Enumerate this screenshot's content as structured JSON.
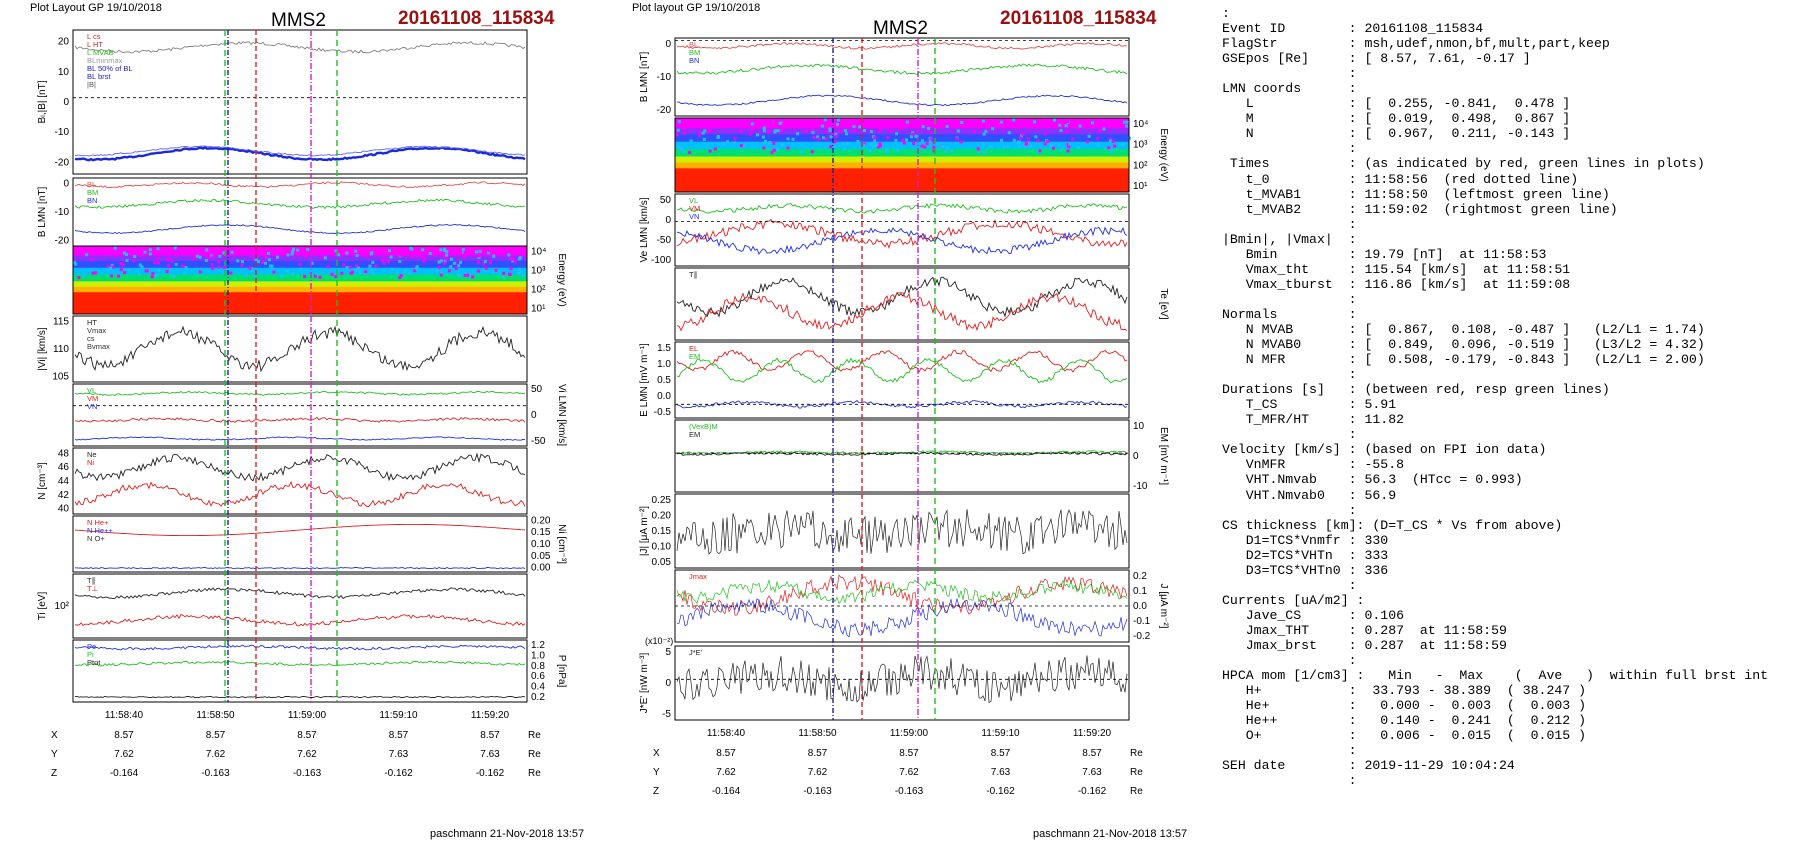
{
  "left_plot": {
    "header": "Plot Layout GP 19/10/2018",
    "title": "MMS2",
    "event": "20161108_115834",
    "footer": "paschmann 21-Nov-2018 13:57",
    "panels": [
      {
        "name": "B",
        "ylabel": "Bₗ,|B| [nT]",
        "ticks": [
          "20",
          "10",
          "0",
          "-10",
          "-20"
        ],
        "legend": [
          "L cs",
          "L HT",
          "L MVAB",
          "BLminmax",
          "BL 50% of BL",
          "BL brst",
          "|B|"
        ],
        "legend_colors": [
          "#e02020",
          "#e02020",
          "#20c020",
          "#999999",
          "#2020c0",
          "#2020c0",
          "#555555"
        ]
      },
      {
        "name": "BLMN",
        "ylabel": "B LMN [nT]",
        "ticks": [
          "0",
          "-10",
          "-20"
        ],
        "legend": [
          "BL",
          "BM",
          "BN"
        ]
      },
      {
        "name": "spec",
        "ylabel": "Energy (eV)",
        "ticks": [
          "10⁴",
          "10³",
          "10²",
          "10¹"
        ]
      },
      {
        "name": "Vi",
        "ylabel": "|Vi| [km/s]",
        "ticks": [
          "115",
          "110",
          "105"
        ],
        "legend": [
          "HT",
          "Vmax",
          "cs",
          "Bvmax"
        ]
      },
      {
        "name": "ViLMN",
        "ylabel": "Vi LMN [km/s]",
        "ticks": [
          "50",
          "0",
          "-50"
        ],
        "legend": [
          "VL",
          "VM",
          "VN"
        ]
      },
      {
        "name": "N",
        "ylabel": "N [cm⁻³]",
        "ticks": [
          "48",
          "46",
          "44",
          "42",
          "40"
        ],
        "legend": [
          "Ne",
          "Ni"
        ]
      },
      {
        "name": "Ni",
        "ylabel": "Ni [cm⁻³]",
        "ticks": [
          "0.20",
          "0.15",
          "0.10",
          "0.05",
          "0.00"
        ],
        "legend": [
          "N He+",
          "N He++",
          "N O+"
        ]
      },
      {
        "name": "Ti",
        "ylabel": "Ti [eV]",
        "ticks": [
          "10²"
        ],
        "legend": [
          "T∥",
          "T⊥"
        ]
      },
      {
        "name": "P",
        "ylabel": "P [nPa]",
        "ticks": [
          "1.2",
          "1.0",
          "0.8",
          "0.6",
          "0.4",
          "0.2"
        ],
        "legend": [
          "Pe",
          "Pi",
          "Ptot"
        ]
      }
    ],
    "time_ticks": [
      "11:58:40",
      "11:58:50",
      "11:59:00",
      "11:59:10",
      "11:59:20"
    ],
    "position_rows": [
      {
        "label": "X",
        "values": [
          "8.57",
          "8.57",
          "8.57",
          "8.57",
          "8.57"
        ],
        "unit": "Re"
      },
      {
        "label": "Y",
        "values": [
          "7.62",
          "7.62",
          "7.62",
          "7.63",
          "7.63"
        ],
        "unit": "Re"
      },
      {
        "label": "Z",
        "values": [
          "-0.164",
          "-0.163",
          "-0.163",
          "-0.162",
          "-0.162"
        ],
        "unit": "Re"
      }
    ]
  },
  "right_plot": {
    "header": "Plot layout GP 19/10/2018",
    "title": "MMS2",
    "event": "20161108_115834",
    "footer": "paschmann 21-Nov-2018 13:57",
    "panels": [
      {
        "name": "BLMN",
        "ylabel": "B LMN [nT]",
        "ticks": [
          "0",
          "-10",
          "-20"
        ],
        "legend": [
          "BL",
          "BM",
          "BN"
        ]
      },
      {
        "name": "spec",
        "ylabel": "Energy (eV)",
        "ticks": [
          "10⁴",
          "10³",
          "10²",
          "10¹"
        ]
      },
      {
        "name": "Ve",
        "ylabel": "Ve LMN [km/s]",
        "ticks": [
          "50",
          "0",
          "-50",
          "-100"
        ],
        "legend": [
          "VL",
          "VM",
          "VN"
        ]
      },
      {
        "name": "Te",
        "ylabel": "Te [eV]",
        "ticks": [],
        "legend": [
          "T∥"
        ]
      },
      {
        "name": "E",
        "ylabel": "E LMN [mV m⁻¹]",
        "ticks": [
          "1.5",
          "1.0",
          "0.5",
          "0.0",
          "-0.5"
        ],
        "legend": [
          "EL",
          "EM"
        ]
      },
      {
        "name": "VexB",
        "ylabel": "EM [mV m⁻¹]",
        "ticks": [
          "10",
          "0",
          "-10"
        ],
        "legend": [
          "(VexB)M",
          "EM"
        ]
      },
      {
        "name": "J",
        "ylabel": "|J| [μA m⁻²]",
        "ticks": [
          "0.25",
          "0.20",
          "0.15",
          "0.10",
          "0.05"
        ]
      },
      {
        "name": "JLMN",
        "ylabel": "J [μA m⁻²]",
        "ticks": [
          "0.2",
          "0.1",
          "0.0",
          "-0.1",
          "-0.2"
        ],
        "legend": [
          "Jmax"
        ]
      },
      {
        "name": "JE",
        "ylabel": "J*E' [nW m⁻³]",
        "ticks": [
          "5",
          "0",
          "-5"
        ],
        "legend": [
          "J*E'"
        ],
        "scale": "(x10⁻²)"
      }
    ],
    "time_ticks": [
      "11:58:40",
      "11:58:50",
      "11:59:00",
      "11:59:10",
      "11:59:20"
    ],
    "position_rows": [
      {
        "label": "X",
        "values": [
          "8.57",
          "8.57",
          "8.57",
          "8.57",
          "8.57"
        ],
        "unit": "Re"
      },
      {
        "label": "Y",
        "values": [
          "7.62",
          "7.62",
          "7.62",
          "7.63",
          "7.63"
        ],
        "unit": "Re"
      },
      {
        "label": "Z",
        "values": [
          "-0.164",
          "-0.163",
          "-0.163",
          "-0.162",
          "-0.162"
        ],
        "unit": "Re"
      }
    ]
  },
  "chart_data": [
    {
      "type": "line",
      "title": "MMS2 20161108_115834",
      "x_range": [
        "11:58:34",
        "11:59:25"
      ],
      "series_summary": "magnetic field, ion spectrogram, ion velocity, density, temperature, pressure time series",
      "markers": {
        "t_0": "11:58:56",
        "t_MVAB1": "11:58:50",
        "t_MVAB2": "11:59:02"
      }
    },
    {
      "type": "line",
      "title": "MMS2 20161108_115834",
      "x_range": [
        "11:58:34",
        "11:59:25"
      ],
      "series_summary": "B LMN, electron spectrogram, Ve LMN, Te, E LMN, EM, |J|, J LMN, J*E' time series",
      "markers": {
        "t_0": "11:58:56",
        "t_MVAB1": "11:58:50",
        "t_MVAB2": "11:59:02"
      }
    }
  ],
  "colors": {
    "event": "#9a1010",
    "red": "#e02020",
    "green": "#20c020",
    "blue": "#2030e0",
    "magenta": "#d020d0"
  },
  "summary_text": [
    ":",
    "Event ID        : 20161108_115834",
    "FlagStr         : msh,udef,nmon,bf,mult,part,keep",
    "GSEpos [Re]     : [ 8.57, 7.61, -0.17 ]",
    "                :",
    "LMN coords      :",
    "   L            : [  0.255, -0.841,  0.478 ]",
    "   M            : [  0.019,  0.498,  0.867 ]",
    "   N            : [  0.967,  0.211, -0.143 ]",
    "                :",
    " Times          : (as indicated by red, green lines in plots)",
    "   t_0          : 11:58:56  (red dotted line)",
    "   t_MVAB1      : 11:58:50  (leftmost green line)",
    "   t_MVAB2      : 11:59:02  (rightmost green line)",
    "                :",
    "|Bmin|, |Vmax|  :",
    "   Bmin         : 19.79 [nT]  at 11:58:53",
    "   Vmax_tht     : 115.54 [km/s]  at 11:58:51",
    "   Vmax_tburst  : 116.86 [km/s]  at 11:59:08",
    "                :",
    "Normals         :",
    "   N MVAB       : [  0.867,  0.108, -0.487 ]   (L2/L1 = 1.74)",
    "   N MVAB0      : [  0.849,  0.096, -0.519 ]   (L3/L2 = 4.32)",
    "   N MFR        : [  0.508, -0.179, -0.843 ]   (L2/L1 = 2.00)",
    "                :",
    "Durations [s]   : (between red, resp green lines)",
    "   T_CS         : 5.91",
    "   T_MFR/HT     : 11.82",
    "                :",
    "Velocity [km/s] : (based on FPI ion data)",
    "   VnMFR        : -55.8",
    "   VHT.Nmvab    : 56.3  (HTcc = 0.993)",
    "   VHT.Nmvab0   : 56.9",
    "                :",
    "CS thickness [km]: (D=T_CS * Vs from above)",
    "   D1=TCS*Vnmfr : 330",
    "   D2=TCS*VHTn  : 333",
    "   D3=TCS*VHTn0 : 336",
    "                :",
    "Currents [uA/m2] :",
    "   Jave_CS      : 0.106",
    "   Jmax_THT     : 0.287  at 11:58:59",
    "   Jmax_brst    : 0.287  at 11:58:59",
    "                :",
    "HPCA mom [1/cm3] :   Min   -  Max    (  Ave   )  within full brst int",
    "   H+           :  33.793 - 38.389  ( 38.247 )",
    "   He+          :   0.000 -  0.003  (  0.003 )",
    "   He++         :   0.140 -  0.241  (  0.212 )",
    "   O+           :   0.006 -  0.015  (  0.015 )",
    "                :",
    "SEH date        : 2019-11-29 10:04:24",
    "                :"
  ]
}
